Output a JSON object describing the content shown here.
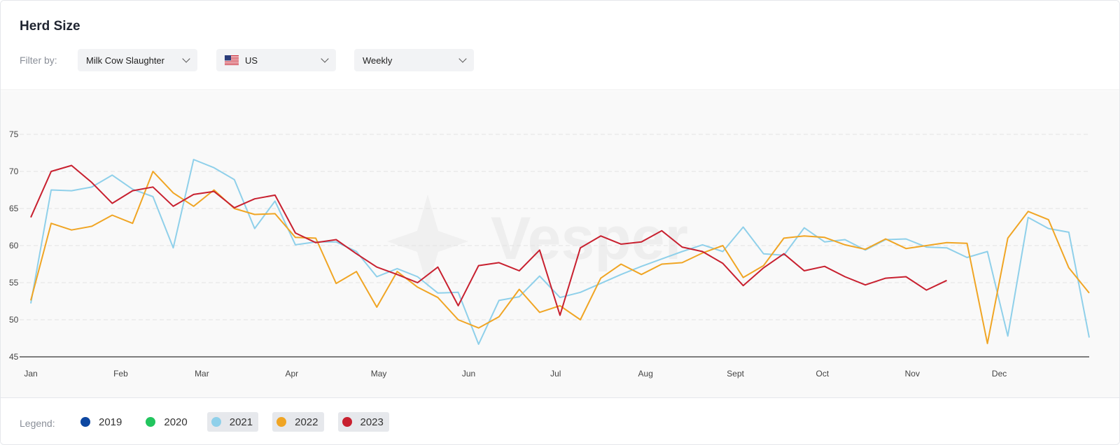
{
  "header": {
    "title": "Herd Size",
    "filter_label": "Filter by:",
    "filters": [
      {
        "label": "Milk Cow Slaughter"
      },
      {
        "label": "US",
        "icon": "us-flag-icon"
      },
      {
        "label": "Weekly"
      }
    ]
  },
  "legend": {
    "label": "Legend:",
    "items": [
      {
        "label": "2019",
        "color": "#0d47a1",
        "active": false
      },
      {
        "label": "2020",
        "color": "#22c55e",
        "active": false
      },
      {
        "label": "2021",
        "color": "#8fd0ea",
        "active": true
      },
      {
        "label": "2022",
        "color": "#f0a524",
        "active": true
      },
      {
        "label": "2023",
        "color": "#c8202f",
        "active": true
      }
    ]
  },
  "chart_data": {
    "type": "line",
    "xlabel": "",
    "ylabel": "",
    "ylim": [
      45,
      75
    ],
    "yticks": [
      45,
      50,
      55,
      60,
      65,
      70,
      75
    ],
    "months": [
      "Jan",
      "Feb",
      "Mar",
      "Apr",
      "May",
      "Jun",
      "Jul",
      "Aug",
      "Sept",
      "Oct",
      "Nov",
      "Dec"
    ],
    "weeks_per_year": 52,
    "grid": true,
    "legend_position": "bottom",
    "watermark": "Vesper",
    "series": [
      {
        "name": "2021",
        "color": "#8fd0ea",
        "values": [
          52.2,
          67.5,
          67.4,
          67.9,
          69.5,
          67.6,
          66.6,
          59.7,
          71.6,
          70.5,
          68.9,
          62.3,
          66.0,
          60.1,
          60.5,
          60.5,
          59.2,
          55.8,
          56.9,
          55.8,
          53.6,
          53.7,
          46.7,
          52.6,
          53.1,
          55.9,
          53.0,
          53.7,
          54.9,
          56.1,
          57.2,
          58.2,
          59.2,
          60.1,
          59.2,
          62.5,
          58.9,
          58.7,
          62.4,
          60.5,
          60.8,
          59.4,
          60.8,
          60.9,
          59.8,
          59.7,
          58.4,
          59.2,
          47.8,
          63.8,
          62.3,
          61.8,
          47.6
        ]
      },
      {
        "name": "2022",
        "color": "#f0a524",
        "values": [
          52.6,
          63.0,
          62.1,
          62.6,
          64.1,
          63.0,
          70.0,
          67.1,
          65.3,
          67.5,
          65.0,
          64.2,
          64.3,
          61.1,
          61.0,
          54.9,
          56.5,
          51.7,
          56.5,
          54.4,
          53.0,
          50.0,
          48.9,
          50.4,
          54.1,
          51.0,
          51.9,
          50.0,
          55.6,
          57.5,
          56.1,
          57.5,
          57.7,
          59.0,
          60.0,
          55.7,
          57.3,
          61.0,
          61.3,
          61.1,
          60.1,
          59.5,
          60.9,
          59.6,
          60.0,
          60.4,
          60.3,
          46.8,
          61.0,
          64.6,
          63.5,
          57.0,
          53.6
        ]
      },
      {
        "name": "2023",
        "color": "#c8202f",
        "values": [
          63.8,
          70.0,
          70.8,
          68.5,
          65.7,
          67.4,
          67.9,
          65.3,
          66.9,
          67.3,
          65.1,
          66.3,
          66.8,
          61.7,
          60.4,
          60.8,
          58.9,
          57.1,
          56.1,
          55.0,
          57.1,
          51.9,
          57.3,
          57.7,
          56.6,
          59.4,
          50.6,
          59.7,
          61.3,
          60.2,
          60.5,
          62.0,
          59.8,
          59.2,
          57.6,
          54.6,
          57.0,
          58.9,
          56.6,
          57.2,
          55.8,
          54.7,
          55.6,
          55.8,
          54.0,
          55.3
        ]
      }
    ]
  }
}
